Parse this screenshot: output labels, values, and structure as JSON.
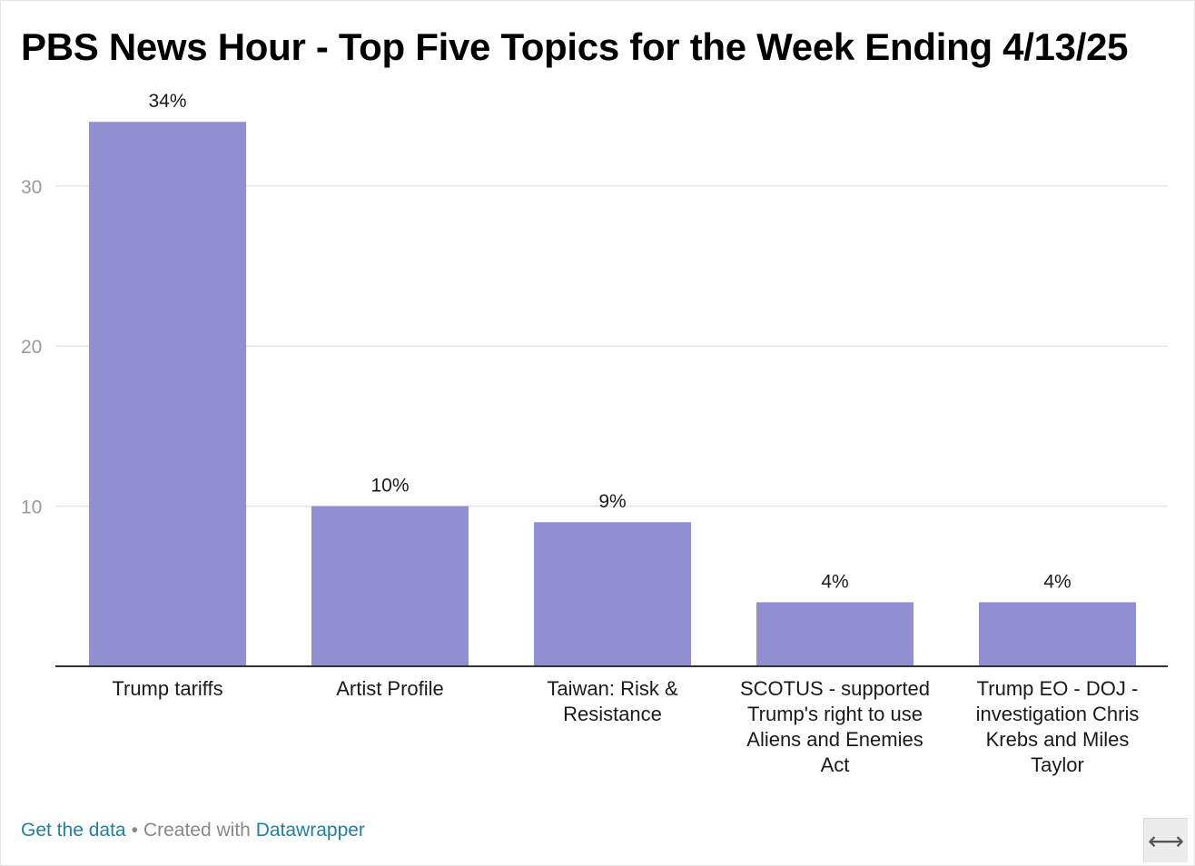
{
  "title": "PBS News Hour - Top Five Topics for the Week Ending 4/13/25",
  "footer": {
    "get_data_label": "Get the data",
    "separator": "•",
    "created_with_label": "Created with",
    "datawrapper_label": "Datawrapper"
  },
  "resize_handle": {
    "icon": "horizontal-resize-icon",
    "glyph": "⟷"
  },
  "colors": {
    "bar": "#8f8fd1",
    "grid": "#e5e5e5",
    "axis": "#333333",
    "tick_label": "#999999",
    "link": "#1d81a2"
  },
  "chart_data": {
    "type": "bar",
    "title": "PBS News Hour - Top Five Topics for the Week Ending 4/13/25",
    "xlabel": "",
    "ylabel": "",
    "ylim": [
      0,
      34
    ],
    "yticks": [
      10,
      20,
      30
    ],
    "grid": true,
    "legend": "none",
    "categories": [
      [
        "Trump tariffs"
      ],
      [
        "Artist Profile"
      ],
      [
        "Taiwan: Risk &",
        "Resistance"
      ],
      [
        "SCOTUS - supported",
        "Trump's right to use",
        "Aliens and Enemies",
        "Act"
      ],
      [
        "Trump EO - DOJ -",
        "investigation Chris",
        "Krebs and Miles",
        "Taylor"
      ]
    ],
    "values": [
      34,
      10,
      9,
      4,
      4
    ],
    "data_labels": [
      "34%",
      "10%",
      "9%",
      "4%",
      "4%"
    ]
  }
}
